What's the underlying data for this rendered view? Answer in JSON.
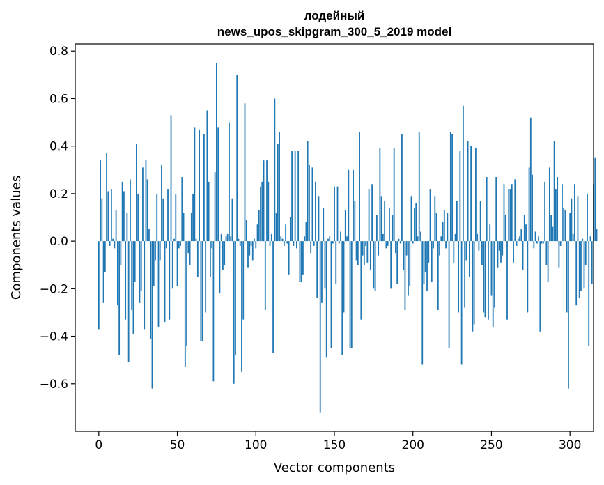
{
  "chart_data": {
    "type": "bar",
    "title_line1": "лодейный",
    "title_line2": "news_upos_skipgram_300_5_2019 model",
    "xlabel": "Vector components",
    "ylabel": "Components values",
    "xlim": [
      -15,
      315
    ],
    "ylim": [
      -0.8,
      0.83
    ],
    "xticks": [
      0,
      50,
      100,
      150,
      200,
      250,
      300
    ],
    "yticks": [
      -0.6,
      -0.4,
      -0.2,
      0.0,
      0.2,
      0.4,
      0.6,
      0.8
    ],
    "xtick_labels": [
      "0",
      "50",
      "100",
      "150",
      "200",
      "250",
      "300"
    ],
    "ytick_labels": [
      "−0.6",
      "−0.4",
      "−0.2",
      "0.0",
      "0.2",
      "0.4",
      "0.6",
      "0.8"
    ],
    "bar_color": "#1f77b4",
    "grid": false,
    "x_start": 0,
    "values": [
      -0.37,
      0.34,
      0.18,
      -0.26,
      -0.13,
      0.37,
      0.21,
      -0.02,
      0.22,
      0.01,
      -0.03,
      0.13,
      -0.27,
      -0.48,
      -0.1,
      0.25,
      0.21,
      -0.33,
      0.12,
      -0.51,
      0.26,
      -0.29,
      -0.39,
      -0.17,
      0.41,
      0.2,
      -0.26,
      -0.21,
      0.31,
      -0.37,
      0.34,
      0.26,
      0.05,
      -0.41,
      -0.62,
      -0.19,
      -0.08,
      0.2,
      -0.36,
      -0.08,
      0.32,
      0.18,
      -0.34,
      -0.03,
      0.22,
      -0.33,
      0.53,
      -0.2,
      0.01,
      0.2,
      -0.19,
      -0.03,
      -0.02,
      0.27,
      0.12,
      -0.53,
      -0.44,
      -0.05,
      -0.1,
      0.12,
      0.2,
      0.48,
      0.01,
      -0.15,
      0.47,
      -0.42,
      -0.42,
      0.45,
      -0.3,
      0.55,
      0.25,
      -0.15,
      -0.03,
      -0.59,
      0.29,
      0.75,
      0.48,
      -0.22,
      0.03,
      -0.12,
      -0.1,
      0.02,
      0.03,
      0.5,
      0.02,
      0.18,
      -0.6,
      -0.48,
      0.7,
      0.01,
      -0.02,
      -0.55,
      -0.33,
      0.58,
      0.09,
      -0.11,
      -0.06,
      -0.02,
      -0.08,
      0.01,
      -0.03,
      0.07,
      0.13,
      0.23,
      0.25,
      0.34,
      -0.29,
      0.34,
      0.25,
      -0.02,
      0.03,
      -0.47,
      0.6,
      0.12,
      0.41,
      0.46,
      0.02,
      0.01,
      -0.02,
      0.07,
      -0.01,
      -0.14,
      0.1,
      0.38,
      -0.02,
      0.38,
      -0.03,
      0.38,
      -0.17,
      -0.17,
      -0.14,
      0.02,
      0.08,
      0.42,
      0.32,
      -0.05,
      0.31,
      -0.02,
      0.25,
      -0.24,
      0.19,
      -0.72,
      -0.26,
      0.14,
      -0.2,
      -0.49,
      0.01,
      0.02,
      -0.45,
      -0.01,
      0.23,
      -0.18,
      0.23,
      -0.01,
      0.04,
      -0.48,
      -0.3,
      0.13,
      0.02,
      0.3,
      -0.45,
      -0.45,
      0.3,
      0.17,
      -0.08,
      -0.1,
      0.46,
      -0.33,
      -0.06,
      -0.1,
      -0.02,
      -0.09,
      0.22,
      -0.12,
      0.24,
      -0.2,
      -0.21,
      0.11,
      -0.06,
      0.39,
      0.19,
      0.03,
      0.17,
      -0.03,
      -0.02,
      0.14,
      -0.2,
      0.11,
      0.39,
      -0.05,
      -0.18,
      0.01,
      -0.01,
      0.45,
      -0.12,
      -0.29,
      -0.06,
      -0.23,
      -0.19,
      0.19,
      -0.01,
      0.14,
      0.16,
      0.02,
      0.46,
      0.04,
      -0.52,
      -0.18,
      -0.13,
      -0.21,
      -0.09,
      0.22,
      -0.17,
      -0.03,
      0.19,
      0.12,
      -0.29,
      -0.06,
      0.02,
      0.08,
      0.13,
      -0.03,
      0.12,
      -0.45,
      0.46,
      0.45,
      -0.09,
      0.03,
      0.17,
      -0.3,
      0.38,
      -0.52,
      0.57,
      -0.28,
      -0.08,
      0.42,
      -0.15,
      0.4,
      -0.38,
      -0.35,
      0.39,
      0.03,
      -0.04,
      0.17,
      -0.1,
      -0.3,
      -0.32,
      0.27,
      -0.33,
      0.07,
      -0.23,
      -0.36,
      -0.28,
      0.27,
      -0.11,
      -0.04,
      -0.09,
      -0.06,
      0.24,
      0.11,
      -0.33,
      0.22,
      0.22,
      0.24,
      -0.09,
      0.26,
      -0.02,
      0.01,
      0.02,
      0.05,
      -0.12,
      0.11,
      0.07,
      -0.3,
      0.31,
      0.52,
      0.28,
      -0.03,
      0.04,
      -0.01,
      0.02,
      -0.38,
      -0.01,
      -0.01,
      0.25,
      -0.1,
      -0.17,
      0.31,
      0.11,
      0.06,
      0.42,
      0.22,
      0.27,
      -0.11,
      -0.02,
      0.24,
      0.14,
      0.13,
      -0.3,
      -0.62,
      0.12,
      0.18,
      0.03,
      0.24,
      -0.27,
      0.19,
      -0.24,
      -0.21,
      0.01,
      -0.2,
      -0.1,
      0.2,
      -0.44,
      0.02,
      -0.18,
      0.24,
      0.35,
      0.05
    ]
  }
}
